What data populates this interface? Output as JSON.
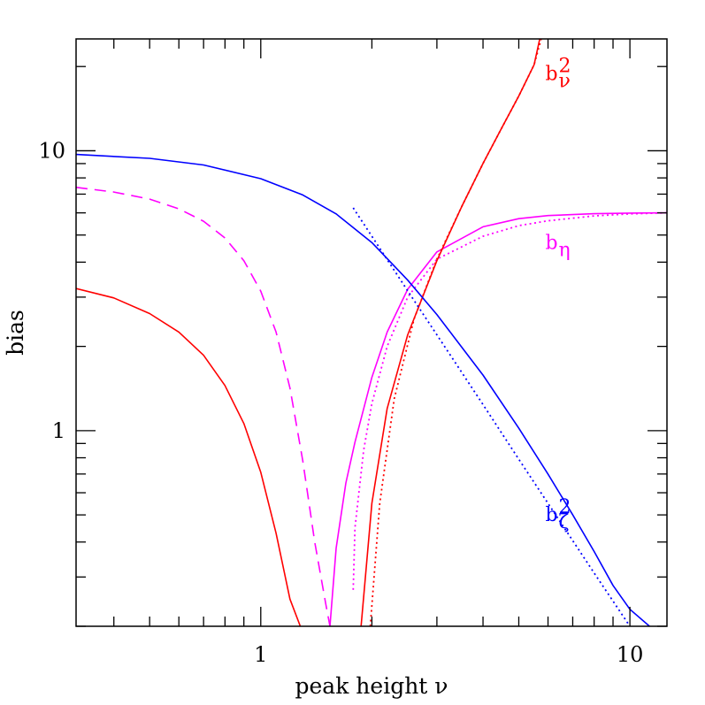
{
  "chart_data": {
    "type": "line",
    "xlabel": "peak height ν",
    "ylabel": "bias",
    "xscale": "log",
    "yscale": "log",
    "xlim": [
      0.316,
      12.6
    ],
    "ylim": [
      0.2,
      25.1
    ],
    "xticks": [
      1,
      10
    ],
    "xtick_labels": [
      "1",
      "10"
    ],
    "yticks": [
      1,
      10
    ],
    "ytick_labels": [
      "1",
      "10"
    ],
    "colors": {
      "red": "#ff0000",
      "magenta": "#ff00ff",
      "blue": "#0000ff"
    },
    "labels": [
      {
        "id": "b-nu",
        "base": "b",
        "sup": "2",
        "sub": "ν",
        "color": "#ff0000",
        "x": 5.9,
        "y": 17.9
      },
      {
        "id": "b-eta",
        "base": "b",
        "sup": "",
        "sub": "η",
        "color": "#ff00ff",
        "x": 5.9,
        "y": 4.46
      },
      {
        "id": "b-zeta",
        "base": "b",
        "sup": "2",
        "sub": "ζ",
        "color": "#0000ff",
        "x": 5.9,
        "y": 0.476
      }
    ],
    "series": [
      {
        "id": "red-low-solid",
        "color": "#ff0000",
        "dash": "solid",
        "x": [
          0.316,
          0.4,
          0.5,
          0.6,
          0.7,
          0.8,
          0.9,
          1.0,
          1.1,
          1.2,
          1.28
        ],
        "y": [
          3.22,
          2.98,
          2.62,
          2.25,
          1.86,
          1.45,
          1.06,
          0.71,
          0.43,
          0.25,
          0.2
        ]
      },
      {
        "id": "magenta-dashed",
        "color": "#ff00ff",
        "dash": "dashed",
        "x": [
          0.316,
          0.4,
          0.5,
          0.6,
          0.7,
          0.8,
          0.9,
          1.0,
          1.1,
          1.2,
          1.3,
          1.4,
          1.5,
          1.54
        ],
        "y": [
          7.4,
          7.12,
          6.72,
          6.2,
          5.6,
          4.88,
          4.05,
          3.15,
          2.25,
          1.42,
          0.78,
          0.4,
          0.24,
          0.2
        ]
      },
      {
        "id": "magenta-solid",
        "color": "#ff00ff",
        "dash": "solid",
        "x": [
          1.54,
          1.6,
          1.7,
          1.8,
          2.0,
          2.2,
          2.5,
          3.0,
          4.0,
          5.0,
          6.0,
          8.0,
          10.0,
          12.6
        ],
        "y": [
          0.2,
          0.38,
          0.65,
          0.91,
          1.55,
          2.25,
          3.2,
          4.35,
          5.35,
          5.72,
          5.87,
          5.96,
          5.99,
          6.0
        ]
      },
      {
        "id": "magenta-dotted",
        "color": "#ff00ff",
        "dash": "dotted",
        "x": [
          1.78,
          1.8,
          1.9,
          2.0,
          2.2,
          2.5,
          3.0,
          4.0,
          5.0,
          6.0,
          8.0,
          10.0,
          12.6
        ],
        "y": [
          0.27,
          0.45,
          0.85,
          1.25,
          2.0,
          3.0,
          4.1,
          4.95,
          5.4,
          5.62,
          5.85,
          5.95,
          6.0
        ]
      },
      {
        "id": "red-solid-high",
        "color": "#ff0000",
        "dash": "solid",
        "x": [
          1.87,
          2.0,
          2.2,
          2.5,
          3.0,
          3.5,
          4.0,
          4.5,
          5.0,
          5.5,
          5.7
        ],
        "y": [
          0.2,
          0.55,
          1.2,
          2.2,
          4.05,
          6.3,
          9.0,
          12.1,
          15.7,
          20.3,
          25.1
        ]
      },
      {
        "id": "red-dotted-high",
        "color": "#ff0000",
        "dash": "dotted",
        "x": [
          1.98,
          2.1,
          2.3,
          2.6,
          3.0,
          3.5,
          4.0,
          4.5,
          5.0,
          5.5,
          5.75
        ],
        "y": [
          0.2,
          0.55,
          1.3,
          2.5,
          4.1,
          6.3,
          9.0,
          12.1,
          15.7,
          20.3,
          25.1
        ]
      },
      {
        "id": "blue-solid",
        "color": "#0000ff",
        "dash": "solid",
        "x": [
          0.316,
          0.5,
          0.7,
          1.0,
          1.3,
          1.6,
          2.0,
          2.5,
          3.0,
          4.0,
          5.0,
          6.0,
          7.0,
          8.0,
          9.0,
          10.0,
          11.3
        ],
        "y": [
          9.7,
          9.4,
          8.9,
          7.95,
          6.95,
          5.95,
          4.7,
          3.45,
          2.6,
          1.58,
          1.02,
          0.7,
          0.5,
          0.37,
          0.28,
          0.23,
          0.2
        ]
      },
      {
        "id": "blue-dotted",
        "color": "#0000ff",
        "dash": "dotted",
        "x": [
          1.78,
          2.0,
          2.5,
          3.0,
          4.0,
          5.0,
          6.0,
          8.0,
          10.0,
          11.3
        ],
        "y": [
          6.25,
          4.95,
          3.16,
          2.2,
          1.24,
          0.79,
          0.55,
          0.31,
          0.2,
          0.157
        ]
      }
    ]
  }
}
